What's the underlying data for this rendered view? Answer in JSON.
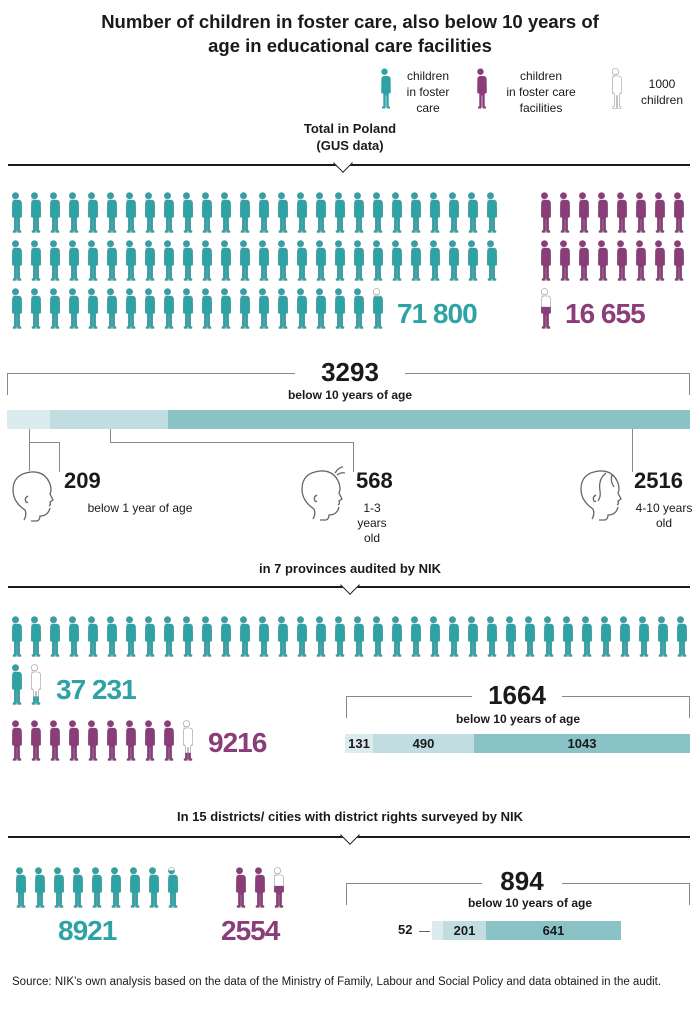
{
  "title_line1": "Number of children in foster care, also below 10 years of",
  "title_line2": "age in educational care facilities",
  "legend": {
    "foster_care": "children in foster care",
    "foster_care_l1": "children",
    "foster_care_l2": "in foster",
    "foster_care_l3": "care",
    "facilities_l1": "children",
    "facilities_l2": "in foster care",
    "facilities_l3": "facilities",
    "unit_l1": "1000",
    "unit_l2": "children",
    "colors": {
      "foster_care": "#2ea3a6",
      "facilities": "#8a3d78",
      "unit_outline": "#9a9a9a"
    }
  },
  "sections": [
    {
      "title_l1": "Total in Poland",
      "title_l2": "(GUS data)",
      "foster_care_total": "71 800",
      "facilities_total": "16 655",
      "below10_total": "3293",
      "below10_label": "below 10 years of age",
      "groups": [
        {
          "value": "209",
          "label": "below 1 year of age"
        },
        {
          "value": "568",
          "label_l1": "1-3 years",
          "label_l2": "old"
        },
        {
          "value": "2516",
          "label_l1": "4-10 years",
          "label_l2": "old"
        }
      ]
    },
    {
      "title": "in 7 provinces audited by NIK",
      "foster_care_total": "37 231",
      "facilities_total": "9216",
      "below10_total": "1664",
      "below10_label": "below 10 years of age",
      "segments": [
        "131",
        "490",
        "1043"
      ]
    },
    {
      "title": "In 15 districts/ cities with district rights surveyed by NIK",
      "foster_care_total": "8921",
      "facilities_total": "2554",
      "below10_total": "894",
      "below10_label": "below 10 years of age",
      "segments": [
        "52",
        "201",
        "641"
      ]
    }
  ],
  "source": "Source: NIK’s own analysis based on the data of the Ministry of Family, Labour and Social Policy and data obtained in the audit.",
  "chart_data": [
    {
      "type": "pictogram",
      "title": "Total in Poland (GUS data)",
      "unit": "1 figure = 1000 children",
      "series": [
        {
          "name": "children in foster care",
          "value": 71800,
          "color": "#2ea3a6"
        },
        {
          "name": "children in foster care facilities",
          "value": 16655,
          "color": "#8a3d78"
        }
      ]
    },
    {
      "type": "bar",
      "stacked": true,
      "title": "Total in Poland - below 10 years of age",
      "total": 3293,
      "categories": [
        "below 1 year of age",
        "1-3 years old",
        "4-10 years old"
      ],
      "values": [
        209,
        568,
        2516
      ]
    },
    {
      "type": "pictogram",
      "title": "in 7 provinces audited by NIK",
      "unit": "1 figure = 1000 children",
      "series": [
        {
          "name": "children in foster care",
          "value": 37231,
          "color": "#2ea3a6"
        },
        {
          "name": "children in foster care facilities",
          "value": 9216,
          "color": "#8a3d78"
        }
      ]
    },
    {
      "type": "bar",
      "stacked": true,
      "title": "in 7 provinces - below 10 years of age",
      "total": 1664,
      "categories": [
        "below 1 year of age",
        "1-3 years old",
        "4-10 years old"
      ],
      "values": [
        131,
        490,
        1043
      ]
    },
    {
      "type": "pictogram",
      "title": "In 15 districts/ cities with district rights surveyed by NIK",
      "unit": "1 figure = 1000 children",
      "series": [
        {
          "name": "children in foster care",
          "value": 8921,
          "color": "#2ea3a6"
        },
        {
          "name": "children in foster care facilities",
          "value": 2554,
          "color": "#8a3d78"
        }
      ]
    },
    {
      "type": "bar",
      "stacked": true,
      "title": "In 15 districts - below 10 years of age",
      "total": 894,
      "categories": [
        "below 1 year of age",
        "1-3 years old",
        "4-10 years old"
      ],
      "values": [
        52,
        201,
        641
      ]
    }
  ]
}
